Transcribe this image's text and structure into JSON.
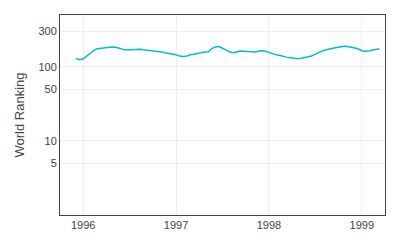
{
  "chart_data": {
    "type": "line",
    "ylabel": "World Ranking",
    "color": "#00bcd4",
    "log": "y",
    "grid": true,
    "xlim": [
      1995.75,
      1999.25
    ],
    "xticks": [
      1996,
      1997,
      1998,
      1999
    ],
    "ylim": [
      1,
      500
    ],
    "yticks": [
      5,
      10,
      50,
      100,
      300
    ],
    "x": [
      1995.92,
      1995.96,
      1996.0,
      1996.04,
      1996.08,
      1996.12,
      1996.15,
      1996.19,
      1996.23,
      1996.27,
      1996.31,
      1996.35,
      1996.38,
      1996.42,
      1996.46,
      1996.5,
      1996.54,
      1996.58,
      1996.62,
      1996.65,
      1996.69,
      1996.73,
      1996.77,
      1996.81,
      1996.85,
      1996.88,
      1996.92,
      1996.96,
      1997.0,
      1997.04,
      1997.08,
      1997.12,
      1997.15,
      1997.19,
      1997.23,
      1997.27,
      1997.31,
      1997.35,
      1997.38,
      1997.42,
      1997.46,
      1997.5,
      1997.54,
      1997.58,
      1997.62,
      1997.65,
      1997.69,
      1997.73,
      1997.77,
      1997.81,
      1997.85,
      1997.88,
      1997.92,
      1997.96,
      1998.0,
      1998.04,
      1998.08,
      1998.12,
      1998.15,
      1998.19,
      1998.23,
      1998.27,
      1998.31,
      1998.35,
      1998.38,
      1998.42,
      1998.46,
      1998.5,
      1998.54,
      1998.58,
      1998.62,
      1998.65,
      1998.69,
      1998.73,
      1998.77,
      1998.81,
      1998.85,
      1998.88,
      1998.92,
      1998.96,
      1999.0,
      1999.04,
      1999.08,
      1999.12,
      1999.15,
      1999.19
    ],
    "values": [
      130,
      125,
      128,
      140,
      155,
      168,
      175,
      178,
      182,
      185,
      185,
      183,
      178,
      172,
      168,
      170,
      172,
      175,
      173,
      170,
      168,
      165,
      163,
      160,
      158,
      155,
      152,
      150,
      145,
      140,
      138,
      140,
      145,
      148,
      152,
      155,
      158,
      160,
      175,
      185,
      188,
      178,
      168,
      158,
      155,
      160,
      163,
      162,
      160,
      158,
      158,
      162,
      165,
      162,
      155,
      148,
      145,
      142,
      138,
      135,
      132,
      130,
      128,
      130,
      132,
      135,
      140,
      148,
      158,
      165,
      170,
      175,
      178,
      182,
      188,
      190,
      188,
      185,
      180,
      175,
      165,
      162,
      165,
      168,
      172,
      175
    ]
  }
}
